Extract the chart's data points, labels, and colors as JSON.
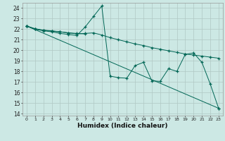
{
  "xlabel": "Humidex (Indice chaleur)",
  "background_color": "#cce8e4",
  "grid_color": "#b0c8c4",
  "line_color": "#006655",
  "xlim": [
    -0.5,
    23.5
  ],
  "ylim": [
    13.8,
    24.5
  ],
  "yticks": [
    14,
    15,
    16,
    17,
    18,
    19,
    20,
    21,
    22,
    23,
    24
  ],
  "xticks": [
    0,
    1,
    2,
    3,
    4,
    5,
    6,
    7,
    8,
    9,
    10,
    11,
    12,
    13,
    14,
    15,
    16,
    17,
    18,
    19,
    20,
    21,
    22,
    23
  ],
  "line1_x": [
    0,
    1,
    2,
    3,
    4,
    5,
    6,
    7
  ],
  "line1_y": [
    22.3,
    22.0,
    21.9,
    21.8,
    21.75,
    21.65,
    21.6,
    21.55
  ],
  "line2_x": [
    0,
    1,
    2,
    3,
    4,
    5,
    6,
    7,
    8,
    9,
    10,
    11,
    12,
    13,
    14,
    15,
    16,
    17,
    18,
    19,
    20,
    21,
    22,
    23
  ],
  "line2_y": [
    22.3,
    22.05,
    21.9,
    21.85,
    21.75,
    21.65,
    21.55,
    21.6,
    21.65,
    21.45,
    21.2,
    21.0,
    20.8,
    20.6,
    20.45,
    20.25,
    20.1,
    19.95,
    19.8,
    19.65,
    19.55,
    19.45,
    19.35,
    19.25
  ],
  "line3_x": [
    0,
    1,
    2,
    3,
    4,
    5,
    6,
    7,
    8,
    9,
    10,
    11,
    12,
    13,
    14,
    15,
    16,
    17,
    18,
    19,
    20,
    21,
    22,
    23
  ],
  "line3_y": [
    22.3,
    22.0,
    21.85,
    21.75,
    21.6,
    21.5,
    21.4,
    22.2,
    23.2,
    24.2,
    17.55,
    17.4,
    17.35,
    18.55,
    18.85,
    17.1,
    17.05,
    18.25,
    18.0,
    19.6,
    19.75,
    18.85,
    16.8,
    14.5
  ],
  "line4_x": [
    0,
    23
  ],
  "line4_y": [
    22.3,
    14.5
  ]
}
